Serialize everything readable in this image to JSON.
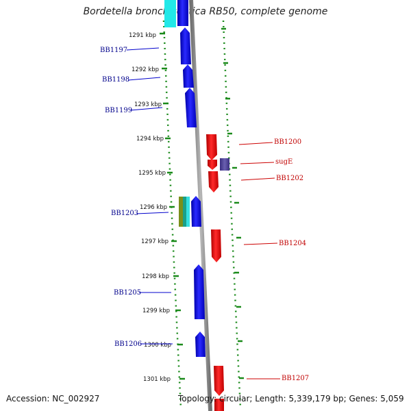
{
  "title": "Bordetella bronchiseptica RB50, complete genome",
  "footer": {
    "accession": "Accession: NC_002927",
    "summary": "Topology: circular; Length: 5,339,179 bp; Genes: 5,059"
  },
  "kbp_ticks": [
    "1291 kbp",
    "1292 kbp",
    "1293 kbp",
    "1294 kbp",
    "1295 kbp",
    "1296 kbp",
    "1297 kbp",
    "1298 kbp",
    "1299 kbp",
    "1300 kbp",
    "1301 kbp"
  ],
  "reverse_genes": [
    "BB1197",
    "BB1198",
    "BB1199",
    "BB1203",
    "BB1205",
    "BB1206"
  ],
  "forward_genes": [
    "BB1200",
    "sugE",
    "BB1202",
    "BB1204",
    "BB1207"
  ],
  "colors": {
    "reverse_strand": "#0000ee",
    "forward_strand": "#ee0000",
    "label_reverse": "#00008b",
    "label_forward": "#c00000",
    "tick_dots": "#1a8a1a",
    "backbone": "#8c8c8c",
    "other_feature": "#4b3f8f"
  }
}
